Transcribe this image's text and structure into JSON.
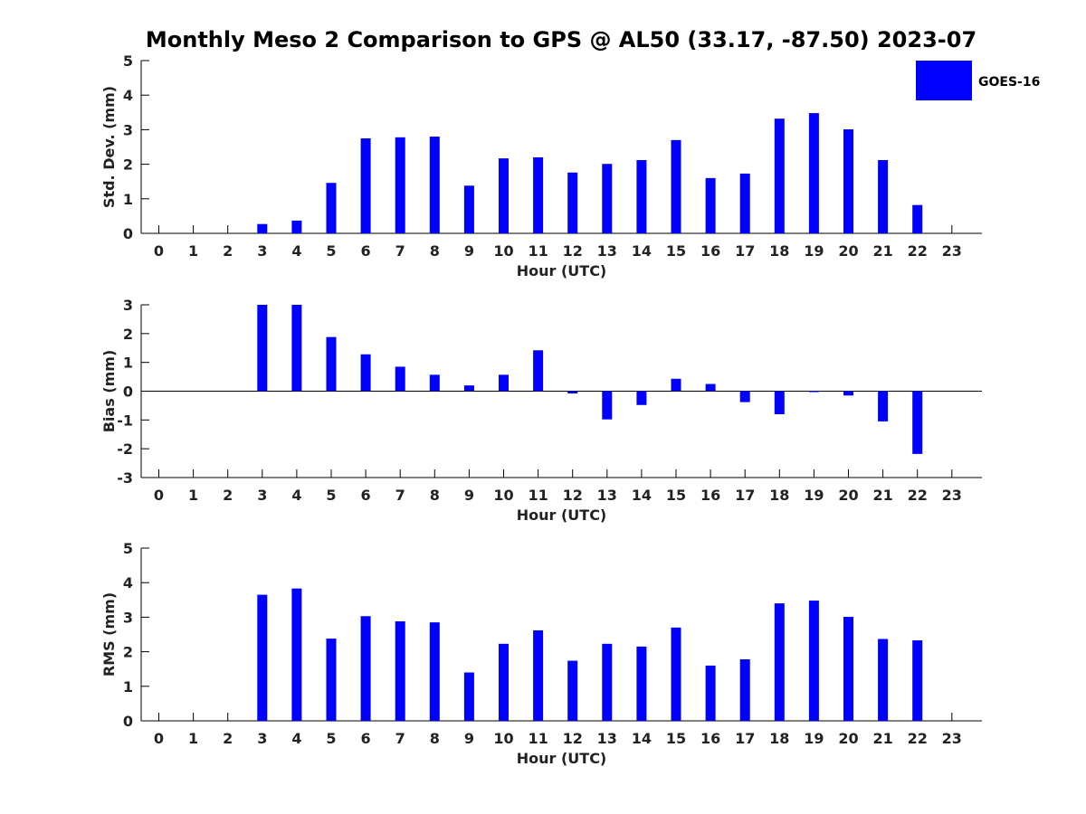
{
  "title": "Monthly Meso 2 Comparison to GPS @ AL50 (33.17, -87.50) 2023-07",
  "legend": {
    "label": "GOES-16",
    "color": "#0000ff"
  },
  "chart_data": [
    {
      "type": "bar",
      "xlabel": "Hour (UTC)",
      "ylabel": "Std. Dev. (mm)",
      "ylim": [
        0,
        5
      ],
      "yticks": [
        0,
        1,
        2,
        3,
        4,
        5
      ],
      "categories": [
        "0",
        "1",
        "2",
        "3",
        "4",
        "5",
        "6",
        "7",
        "8",
        "9",
        "10",
        "11",
        "12",
        "13",
        "14",
        "15",
        "16",
        "17",
        "18",
        "19",
        "20",
        "21",
        "22",
        "23"
      ],
      "series": [
        {
          "name": "GOES-16",
          "color": "#0000ff",
          "values": [
            null,
            null,
            null,
            0.27,
            0.37,
            1.46,
            2.75,
            2.78,
            2.8,
            1.38,
            2.17,
            2.2,
            1.76,
            2.01,
            2.12,
            2.7,
            1.6,
            1.73,
            3.32,
            3.48,
            3.01,
            2.12,
            0.82,
            null
          ]
        }
      ]
    },
    {
      "type": "bar",
      "xlabel": "Hour (UTC)",
      "ylabel": "Bias (mm)",
      "ylim": [
        -3,
        3
      ],
      "yticks": [
        -3,
        -2,
        -1,
        0,
        1,
        2,
        3
      ],
      "categories": [
        "0",
        "1",
        "2",
        "3",
        "4",
        "5",
        "6",
        "7",
        "8",
        "9",
        "10",
        "11",
        "12",
        "13",
        "14",
        "15",
        "16",
        "17",
        "18",
        "19",
        "20",
        "21",
        "22",
        "23"
      ],
      "series": [
        {
          "name": "GOES-16",
          "color": "#0000ff",
          "values": [
            null,
            null,
            null,
            3.0,
            3.0,
            1.88,
            1.28,
            0.85,
            0.57,
            0.2,
            0.57,
            1.42,
            -0.08,
            -0.98,
            -0.48,
            0.43,
            0.25,
            -0.38,
            -0.8,
            0.0,
            -0.15,
            -1.05,
            -2.18,
            null
          ]
        }
      ]
    },
    {
      "type": "bar",
      "xlabel": "Hour (UTC)",
      "ylabel": "RMS (mm)",
      "ylim": [
        0,
        5
      ],
      "yticks": [
        0,
        1,
        2,
        3,
        4,
        5
      ],
      "categories": [
        "0",
        "1",
        "2",
        "3",
        "4",
        "5",
        "6",
        "7",
        "8",
        "9",
        "10",
        "11",
        "12",
        "13",
        "14",
        "15",
        "16",
        "17",
        "18",
        "19",
        "20",
        "21",
        "22",
        "23"
      ],
      "series": [
        {
          "name": "GOES-16",
          "color": "#0000ff",
          "values": [
            null,
            null,
            null,
            3.65,
            3.83,
            2.38,
            3.03,
            2.88,
            2.85,
            1.4,
            2.23,
            2.62,
            1.74,
            2.23,
            2.15,
            2.7,
            1.6,
            1.78,
            3.4,
            3.48,
            3.01,
            2.37,
            2.33,
            null
          ]
        }
      ]
    }
  ]
}
